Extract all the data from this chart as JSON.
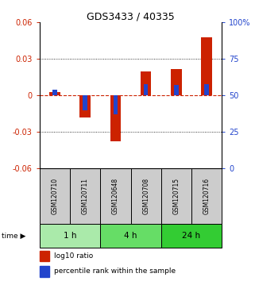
{
  "title": "GDS3433 / 40335",
  "samples": [
    "GSM120710",
    "GSM120711",
    "GSM120648",
    "GSM120708",
    "GSM120715",
    "GSM120716"
  ],
  "time_groups": [
    {
      "label": "1 h",
      "start": 0,
      "end": 2,
      "color": "#aaeaaa"
    },
    {
      "label": "4 h",
      "start": 2,
      "end": 4,
      "color": "#66dd66"
    },
    {
      "label": "24 h",
      "start": 4,
      "end": 6,
      "color": "#33cc33"
    }
  ],
  "log10_ratio": [
    0.003,
    -0.018,
    -0.038,
    0.02,
    0.022,
    0.048
  ],
  "percentile_rank": [
    54,
    40,
    37,
    58,
    57,
    58
  ],
  "ylim_left": [
    -0.06,
    0.06
  ],
  "ylim_right": [
    0,
    100
  ],
  "yticks_left": [
    -0.06,
    -0.03,
    0,
    0.03,
    0.06
  ],
  "yticks_right": [
    0,
    25,
    50,
    75,
    100
  ],
  "bar_color_red": "#cc2200",
  "bar_color_blue": "#2244cc",
  "bar_width": 0.35,
  "blue_bar_width": 0.14,
  "legend_red": "log10 ratio",
  "legend_blue": "percentile rank within the sample",
  "left_label_color": "#cc2200",
  "right_label_color": "#2244cc",
  "sample_bg": "#cccccc",
  "time_label": "time"
}
